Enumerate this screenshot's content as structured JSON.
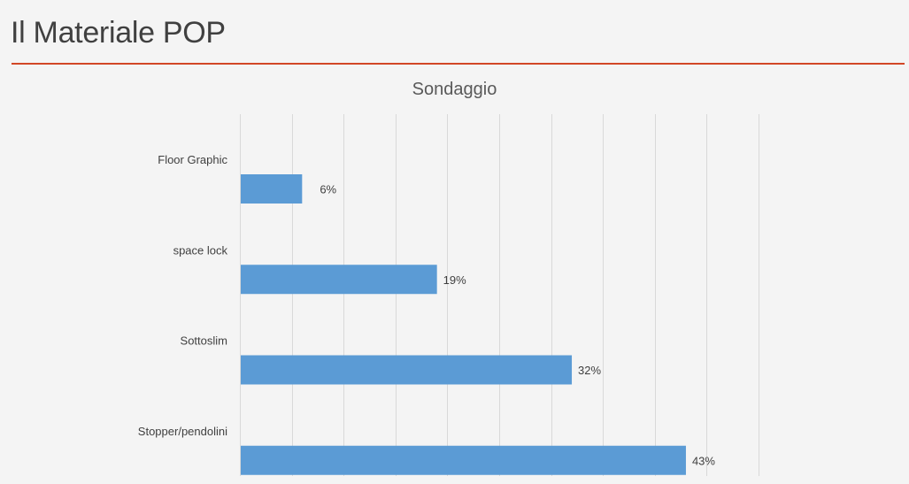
{
  "slide": {
    "title": "Il Materiale POP"
  },
  "chart_data": {
    "type": "bar",
    "orientation": "horizontal",
    "title": "Sondaggio",
    "categories": [
      "Floor Graphic",
      "space lock",
      "Sottoslim",
      "Stopper/pendolini"
    ],
    "values": [
      6,
      19,
      32,
      43
    ],
    "value_labels": [
      "6%",
      "19%",
      "32%",
      "43%"
    ],
    "xlim": [
      0,
      50
    ],
    "grid": true,
    "bar_color": "#5b9bd5",
    "accent_color": "#d24726"
  }
}
